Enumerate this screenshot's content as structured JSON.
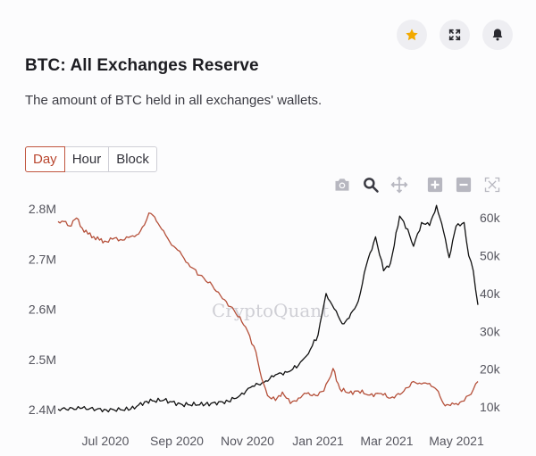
{
  "header": {
    "title": "BTC: All Exchanges Reserve",
    "subtitle": "The amount of BTC held in all exchanges' wallets."
  },
  "icons": {
    "favorite": "star-icon",
    "fullscreen": "expand-icon",
    "alert": "bell-icon"
  },
  "tabs": [
    {
      "label": "Day",
      "active": true
    },
    {
      "label": "Hour",
      "active": false
    },
    {
      "label": "Block",
      "active": false
    }
  ],
  "toolbar": [
    "camera-icon",
    "zoom-icon",
    "pan-icon",
    "zoom-in-icon",
    "zoom-out-icon",
    "autoscale-icon"
  ],
  "colors": {
    "reserve": "#b5503a",
    "price": "#111111",
    "star": "#f2a900",
    "active_tab": "#b9462e"
  },
  "watermark": "CryptoQuant",
  "chart_data": {
    "type": "line",
    "title": "BTC: All Exchanges Reserve",
    "x_ticks": [
      "Jul 2020",
      "Sep 2020",
      "Nov 2020",
      "Jan 2021",
      "Mar 2021",
      "May 2021"
    ],
    "x_range": [
      "2020-05-20",
      "2021-05-20"
    ],
    "y_left": {
      "ticks": [
        "2.8M",
        "2.7M",
        "2.6M",
        "2.5M",
        "2.4M"
      ],
      "tick_values": [
        2800000,
        2700000,
        2600000,
        2500000,
        2400000
      ],
      "range": [
        2375000,
        2820000
      ]
    },
    "y_right": {
      "ticks": [
        "60k",
        "50k",
        "40k",
        "30k",
        "20k",
        "10k"
      ],
      "tick_values": [
        60000,
        50000,
        40000,
        30000,
        20000,
        10000
      ],
      "range": [
        6000,
        65000
      ]
    },
    "grid": false,
    "series": [
      {
        "axis": "left",
        "x": [
          "2020-05-20",
          "2020-05-25",
          "2020-05-30",
          "2020-06-05",
          "2020-06-10",
          "2020-06-15",
          "2020-06-20",
          "2020-06-25",
          "2020-07-01",
          "2020-07-08",
          "2020-07-15",
          "2020-07-22",
          "2020-07-29",
          "2020-08-03",
          "2020-08-07",
          "2020-08-12",
          "2020-08-18",
          "2020-08-25",
          "2020-09-01",
          "2020-09-10",
          "2020-09-20",
          "2020-10-01",
          "2020-10-10",
          "2020-10-20",
          "2020-10-30",
          "2020-11-08",
          "2020-11-13",
          "2020-11-18",
          "2020-11-25",
          "2020-12-01",
          "2020-12-08",
          "2020-12-15",
          "2020-12-22",
          "2020-12-30",
          "2021-01-06",
          "2021-01-10",
          "2021-01-14",
          "2021-01-20",
          "2021-01-28",
          "2021-02-05",
          "2021-02-15",
          "2021-02-25",
          "2021-03-05",
          "2021-03-15",
          "2021-03-25",
          "2021-04-01",
          "2021-04-08",
          "2021-04-14",
          "2021-04-20",
          "2021-04-26",
          "2021-05-01",
          "2021-05-08",
          "2021-05-12",
          "2021-05-16",
          "2021-05-20"
        ],
        "values": [
          2775000,
          2775000,
          2766000,
          2782000,
          2762000,
          2750000,
          2745000,
          2738000,
          2735000,
          2742000,
          2738000,
          2745000,
          2750000,
          2768000,
          2792000,
          2784000,
          2760000,
          2735000,
          2718000,
          2692000,
          2668000,
          2648000,
          2621000,
          2598000,
          2565000,
          2515000,
          2462000,
          2428000,
          2418000,
          2435000,
          2412000,
          2423000,
          2432000,
          2428000,
          2437000,
          2458000,
          2482000,
          2441000,
          2433000,
          2437000,
          2429000,
          2432000,
          2423000,
          2433000,
          2456000,
          2451000,
          2452000,
          2440000,
          2412000,
          2408000,
          2412000,
          2417000,
          2428000,
          2440000,
          2456000
        ]
      },
      {
        "axis": "right",
        "x": [
          "2020-05-20",
          "2020-06-10",
          "2020-07-01",
          "2020-07-22",
          "2020-08-05",
          "2020-08-20",
          "2020-09-05",
          "2020-09-25",
          "2020-10-15",
          "2020-10-25",
          "2020-11-05",
          "2020-11-15",
          "2020-11-25",
          "2020-12-05",
          "2020-12-15",
          "2020-12-22",
          "2021-01-01",
          "2021-01-08",
          "2021-01-15",
          "2021-01-22",
          "2021-01-28",
          "2021-02-05",
          "2021-02-12",
          "2021-02-20",
          "2021-02-27",
          "2021-03-05",
          "2021-03-13",
          "2021-03-20",
          "2021-03-25",
          "2021-04-01",
          "2021-04-08",
          "2021-04-14",
          "2021-04-20",
          "2021-04-25",
          "2021-05-01",
          "2021-05-08",
          "2021-05-12",
          "2021-05-16",
          "2021-05-20"
        ],
        "values": [
          9400,
          9700,
          9200,
          9400,
          11500,
          11800,
          10600,
          10700,
          11500,
          13000,
          15500,
          16500,
          18500,
          19200,
          21000,
          23500,
          29000,
          40000,
          36000,
          32000,
          33500,
          38000,
          47500,
          55000,
          46000,
          48000,
          60500,
          57000,
          52500,
          58800,
          58000,
          63300,
          56500,
          49500,
          57800,
          58800,
          50000,
          46000,
          37000
        ]
      }
    ]
  }
}
